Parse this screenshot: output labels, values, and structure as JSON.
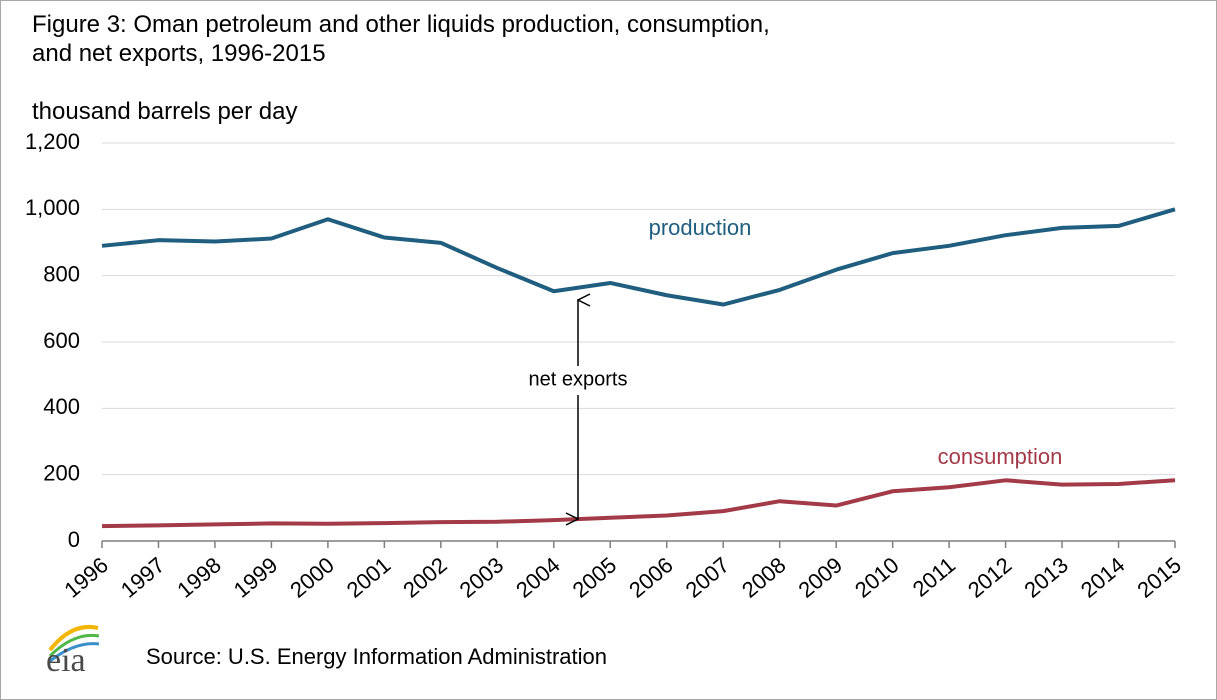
{
  "chart_data": {
    "type": "line",
    "title": "Figure 3: Oman petroleum and other liquids production, consumption, and net exports, 1996-2015",
    "subtitle": "thousand barrels per day",
    "categories": [
      "1996",
      "1997",
      "1998",
      "1999",
      "2000",
      "2001",
      "2002",
      "2003",
      "2004",
      "2005",
      "2006",
      "2007",
      "2008",
      "2009",
      "2010",
      "2011",
      "2012",
      "2013",
      "2014",
      "2015"
    ],
    "series": [
      {
        "name": "production",
        "color": "#205e80",
        "values": [
          890,
          907,
          903,
          912,
          970,
          915,
          899,
          823,
          753,
          778,
          741,
          713,
          757,
          818,
          868,
          890,
          922,
          944,
          950,
          1000
        ]
      },
      {
        "name": "consumption",
        "color": "#a33a48",
        "values": [
          45,
          47,
          50,
          53,
          52,
          54,
          57,
          58,
          63,
          70,
          77,
          90,
          120,
          107,
          150,
          162,
          183,
          170,
          172,
          183
        ]
      }
    ],
    "annotations": [
      "net exports"
    ],
    "ylim": [
      0,
      1200
    ],
    "yticks": [
      0,
      200,
      400,
      600,
      800,
      {
        "value": 1000,
        "label": "1,000"
      },
      {
        "value": 1200,
        "label": "1,200"
      }
    ],
    "grid": true,
    "source": "Source: U.S. Energy Information Administration",
    "logo": "eia"
  }
}
